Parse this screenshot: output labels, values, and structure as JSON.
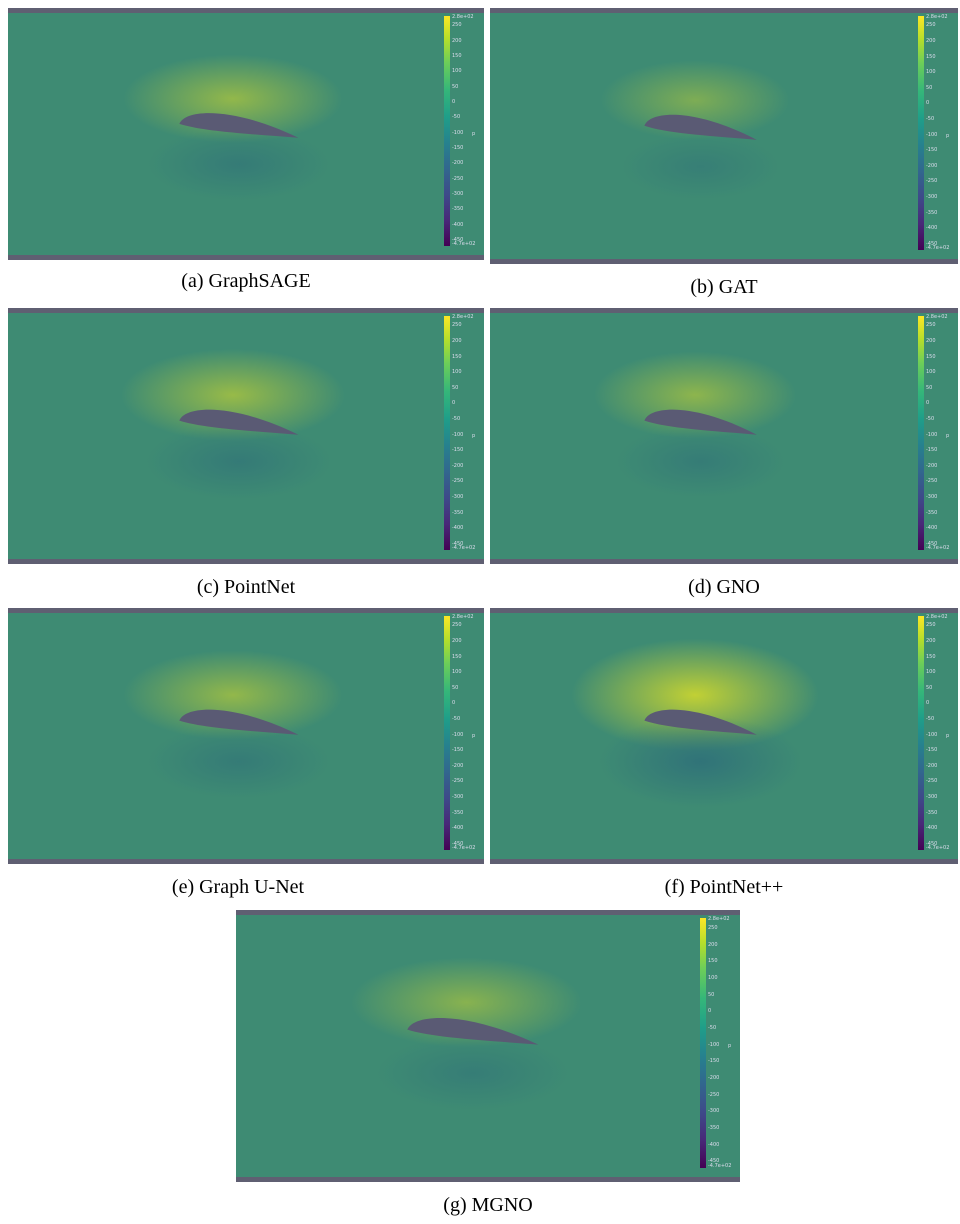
{
  "colorbar": {
    "max_label": "2.8e+02",
    "min_label": "-4.7e+02",
    "ticks": [
      "250",
      "200",
      "150",
      "100",
      "50",
      "0",
      "-50",
      "-100",
      "-150",
      "-200",
      "-250",
      "-300",
      "-350",
      "-400",
      "-450"
    ],
    "variable": "p"
  },
  "panels": [
    {
      "id": "a",
      "caption": "(a) GraphSAGE",
      "intensity": 0.55
    },
    {
      "id": "b",
      "caption": "(b) GAT",
      "intensity": 0.35
    },
    {
      "id": "c",
      "caption": "(c) PointNet",
      "intensity": 0.6
    },
    {
      "id": "d",
      "caption": "(d) GNO",
      "intensity": 0.5
    },
    {
      "id": "e",
      "caption": "(e) Graph U-Net",
      "intensity": 0.55
    },
    {
      "id": "f",
      "caption": "(f) PointNet++",
      "intensity": 1.0
    },
    {
      "id": "g",
      "caption": "(g) MGNO",
      "intensity": 0.45
    }
  ],
  "colors": {
    "background": "#3e8b73",
    "frame_bar": "#5f5f72",
    "airfoil": "#5a5a74",
    "high_pressure": "#c8d431",
    "low_pressure": "#2d6d7a"
  }
}
